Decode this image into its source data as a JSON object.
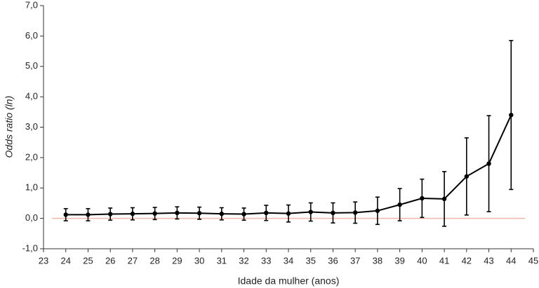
{
  "chart_data": {
    "type": "line",
    "x_label": "Idade da mulher (anos)",
    "y_label": "Odds ratio (ln)",
    "x": [
      24,
      25,
      26,
      27,
      28,
      29,
      30,
      31,
      32,
      33,
      34,
      35,
      36,
      37,
      38,
      39,
      40,
      41,
      42,
      43,
      44
    ],
    "series": [
      {
        "color": "#000000",
        "values": [
          0.12,
          0.12,
          0.14,
          0.15,
          0.16,
          0.18,
          0.17,
          0.15,
          0.14,
          0.18,
          0.16,
          0.21,
          0.18,
          0.19,
          0.25,
          0.45,
          0.66,
          0.64,
          1.38,
          1.8,
          3.4
        ],
        "errors": [
          0.2,
          0.2,
          0.2,
          0.2,
          0.2,
          0.2,
          0.2,
          0.2,
          0.2,
          0.25,
          0.28,
          0.3,
          0.33,
          0.35,
          0.45,
          0.53,
          0.63,
          0.9,
          1.27,
          1.58,
          2.45
        ]
      }
    ],
    "reference_line": {
      "value": 0,
      "color": "#f0b8a8"
    },
    "xlim": [
      23,
      45
    ],
    "xticks": [
      23,
      24,
      25,
      26,
      27,
      28,
      29,
      30,
      31,
      32,
      33,
      34,
      35,
      36,
      37,
      38,
      39,
      40,
      41,
      42,
      43,
      44,
      45
    ],
    "ylim": [
      -1,
      7
    ],
    "yticks": [
      {
        "value": -1,
        "label": "-1,0"
      },
      {
        "value": 0,
        "label": "0,0"
      },
      {
        "value": 1,
        "label": "1,0"
      },
      {
        "value": 2,
        "label": "2,0"
      },
      {
        "value": 3,
        "label": "3,0"
      },
      {
        "value": 4,
        "label": "4,0"
      },
      {
        "value": 5,
        "label": "5,0"
      },
      {
        "value": 6,
        "label": "6,0"
      },
      {
        "value": 7,
        "label": "7,0"
      }
    ],
    "grid": false
  }
}
